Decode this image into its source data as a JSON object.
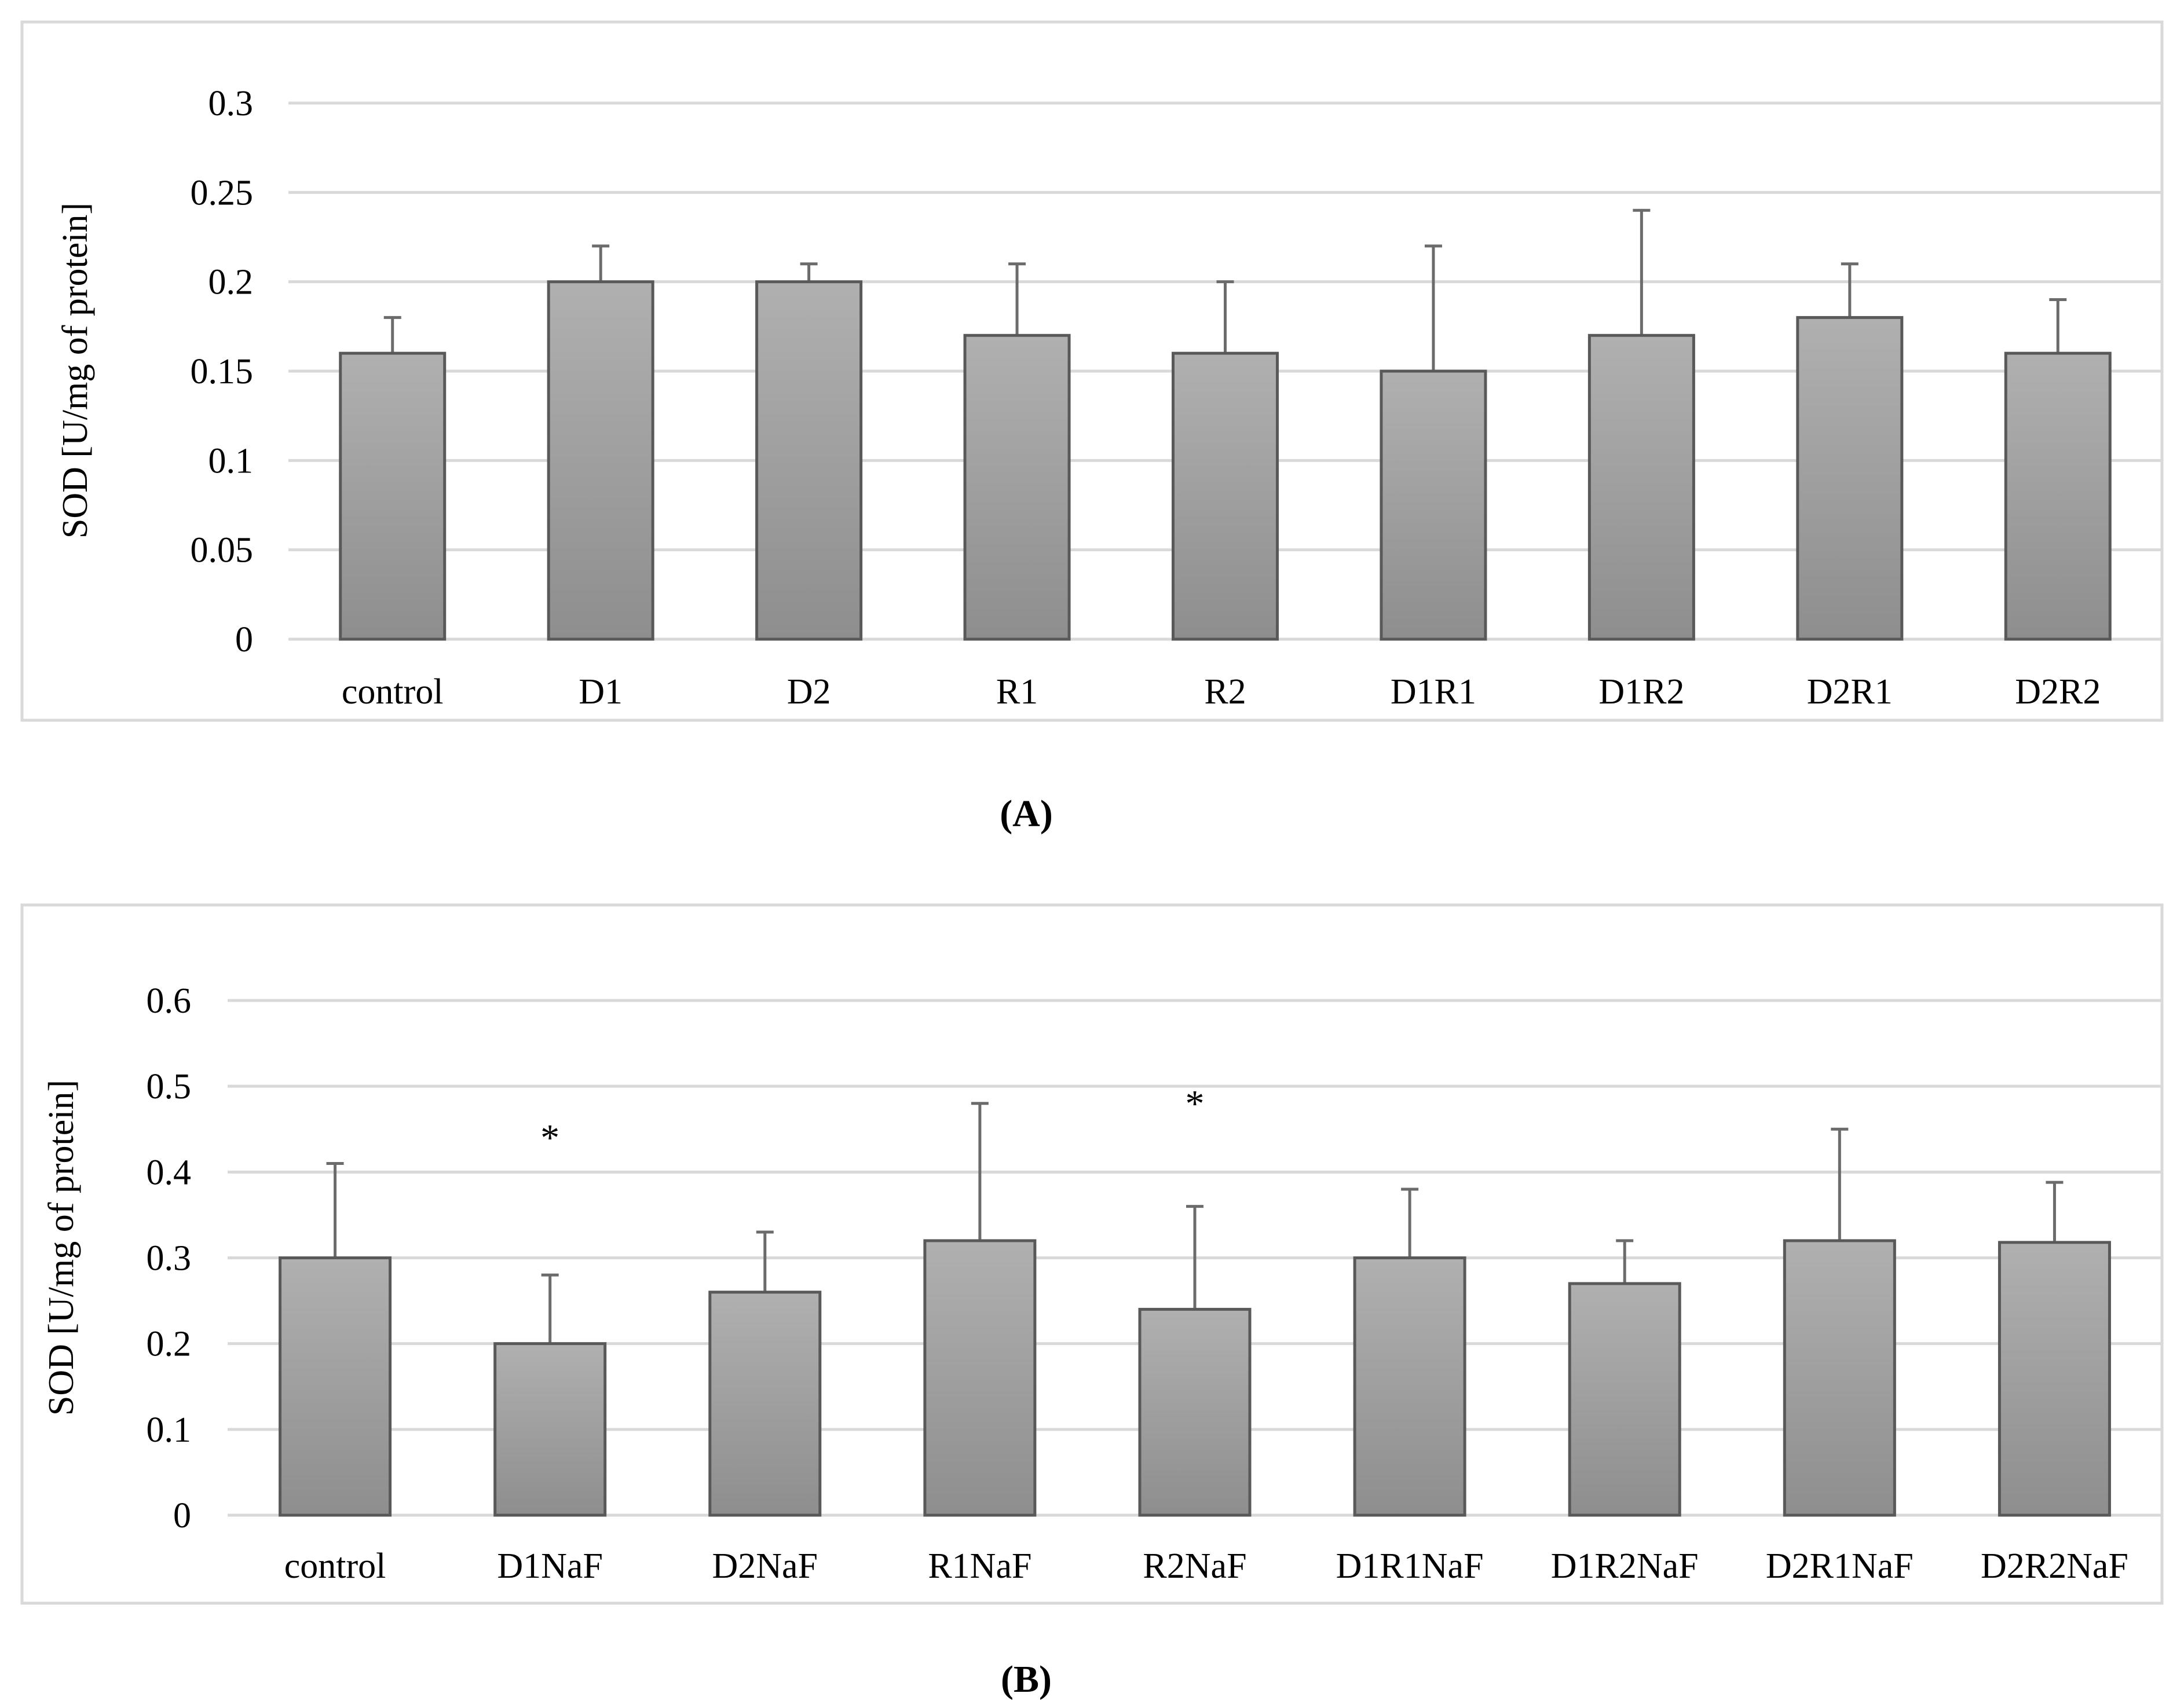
{
  "colors": {
    "bar_fill_top": "#b0b0b0",
    "bar_fill_bottom": "#8e8e8e",
    "bar_stroke": "#595959",
    "error_bar": "#6b6b6b",
    "grid": "#d9d9d9",
    "frame": "#d9d9d9"
  },
  "chart_data": [
    {
      "type": "bar",
      "panel_label": "(A)",
      "ylabel": "SOD [U/mg of protein]",
      "ylim": [
        0,
        0.3
      ],
      "yticks": [
        0,
        0.05,
        0.1,
        0.15,
        0.2,
        0.25,
        0.3
      ],
      "ytick_labels": [
        "0",
        "0.05",
        "0.1",
        "0.15",
        "0.2",
        "0.25",
        "0.3"
      ],
      "categories": [
        "control",
        "D1",
        "D2",
        "R1",
        "R2",
        "D1R1",
        "D1R2",
        "D2R1",
        "D2R2"
      ],
      "values": [
        0.16,
        0.2,
        0.2,
        0.17,
        0.16,
        0.15,
        0.17,
        0.18,
        0.16
      ],
      "errors": [
        0.02,
        0.02,
        0.01,
        0.04,
        0.04,
        0.07,
        0.07,
        0.03,
        0.03
      ],
      "significance": [],
      "grid": true,
      "legend": "none"
    },
    {
      "type": "bar",
      "panel_label": "(B)",
      "ylabel": "SOD [U/mg of protein]",
      "ylim": [
        0,
        0.6
      ],
      "yticks": [
        0,
        0.1,
        0.2,
        0.3,
        0.4,
        0.5,
        0.6
      ],
      "ytick_labels": [
        "0",
        "0.1",
        "0.2",
        "0.3",
        "0.4",
        "0.5",
        "0.6"
      ],
      "categories": [
        "control",
        "D1NaF",
        "D2NaF",
        "R1NaF",
        "R2NaF",
        "D1R1NaF",
        "D1R2NaF",
        "D2R1NaF",
        "D2R2NaF"
      ],
      "values": [
        0.3,
        0.2,
        0.26,
        0.32,
        0.24,
        0.3,
        0.27,
        0.32,
        0.318
      ],
      "errors": [
        0.11,
        0.08,
        0.07,
        0.16,
        0.12,
        0.08,
        0.05,
        0.13,
        0.07
      ],
      "significance": [
        {
          "category": "D1NaF",
          "mark": "*",
          "value": 0.44
        },
        {
          "category": "R2NaF",
          "mark": "*",
          "value": 0.48
        }
      ],
      "grid": true,
      "legend": "none"
    }
  ]
}
